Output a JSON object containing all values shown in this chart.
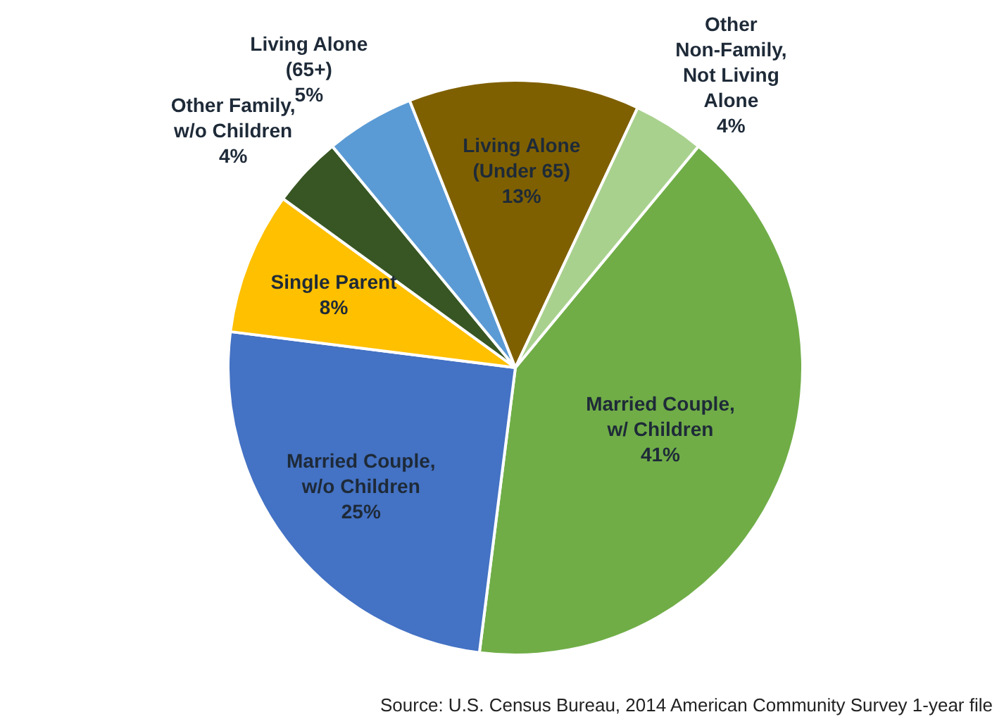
{
  "chart_data": {
    "type": "pie",
    "categories": [
      "Married Couple, w/ Children",
      "Married Couple, w/o Children",
      "Single Parent",
      "Other Family, w/o Children",
      "Living Alone (65+)",
      "Living Alone (Under 65)",
      "Other Non-Family, Not Living Alone"
    ],
    "values": [
      41,
      25,
      8,
      4,
      5,
      13,
      4
    ],
    "value_labels": [
      "41%",
      "25%",
      "8%",
      "4%",
      "5%",
      "13%",
      "4%"
    ],
    "colors": [
      "#70ad47",
      "#4472c4",
      "#ffc000",
      "#375623",
      "#5b9bd5",
      "#7f6000",
      "#a9d18e"
    ],
    "annotations": [
      "Source: U.S. Census Bureau, 2014  American Community Survey 1-year file"
    ]
  }
}
